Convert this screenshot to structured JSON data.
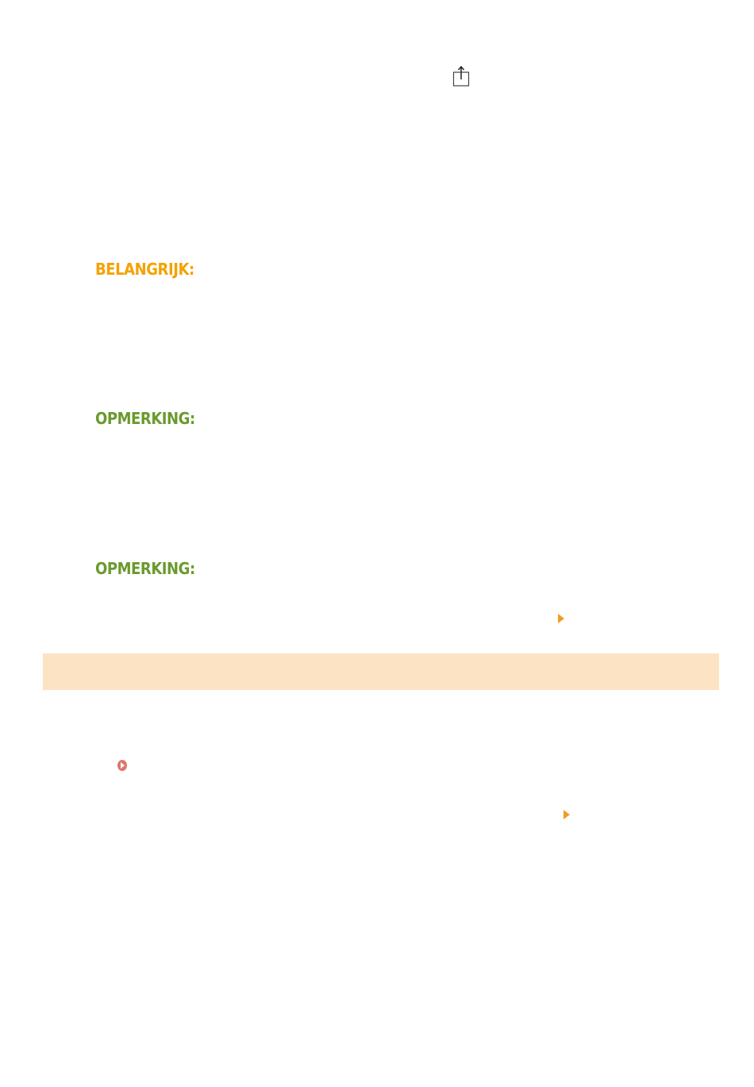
{
  "icons": {
    "share": "share-icon",
    "link_arrow": "triangle-right-icon",
    "link_circle": "circle-play-icon"
  },
  "headings": {
    "important": "BELANGRIJK:",
    "note_1": "OPMERKING:",
    "note_2": "OPMERKING:"
  },
  "colors": {
    "important": "#f5a100",
    "note": "#6a9a2e",
    "section_band": "#fbe3c4",
    "link_arrow": "#f19d25",
    "link_circle": "#e0756a"
  }
}
